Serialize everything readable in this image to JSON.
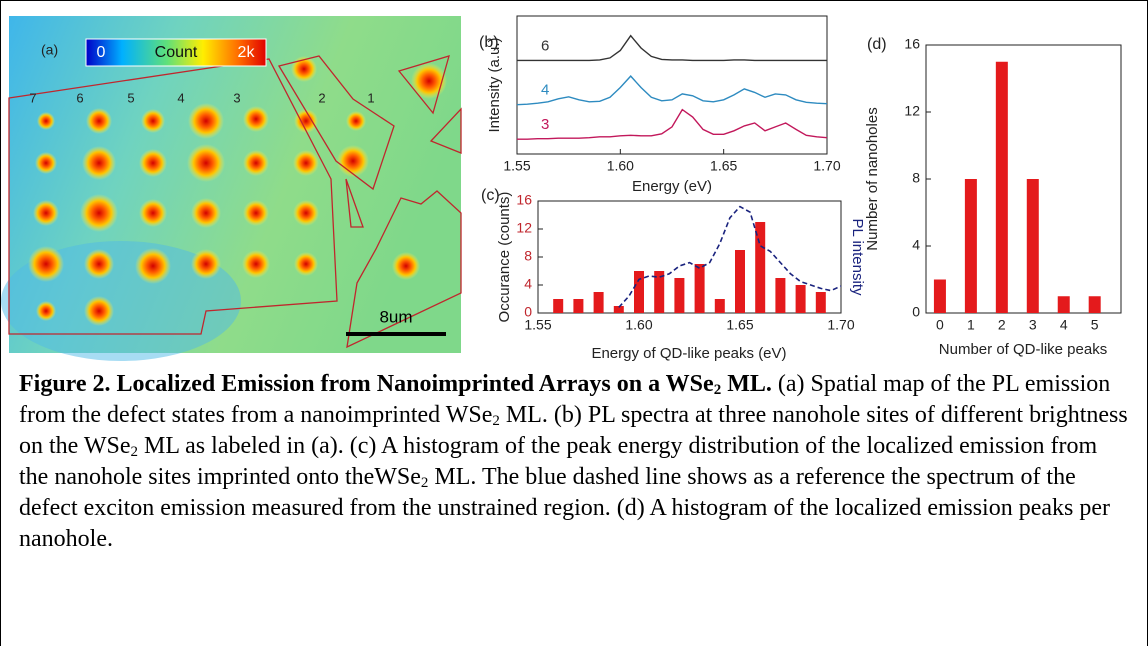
{
  "image_panel": {
    "panel_label": "(a)",
    "colorbar": {
      "min_label": "0",
      "title": "Count",
      "max_label": "2k"
    },
    "site_labels": [
      "7",
      "6",
      "5",
      "4",
      "3",
      "2",
      "1"
    ],
    "scale_bar": "8um"
  },
  "chart_data": [
    {
      "panel_label": "(b)",
      "type": "line",
      "x_label": "Energy (eV)",
      "y_label": "Intensity (a.u.)",
      "x": [
        1.55,
        1.555,
        1.56,
        1.565,
        1.57,
        1.575,
        1.58,
        1.585,
        1.59,
        1.595,
        1.6,
        1.605,
        1.61,
        1.615,
        1.62,
        1.625,
        1.63,
        1.635,
        1.64,
        1.645,
        1.65,
        1.655,
        1.66,
        1.665,
        1.67,
        1.675,
        1.68,
        1.685,
        1.69,
        1.695,
        1.7
      ],
      "xlim": [
        1.55,
        1.7
      ],
      "xticks": [
        1.55,
        {
          "value": 1.6,
          "label": "1.60"
        },
        1.65,
        {
          "value": 1.7,
          "label": "1.70"
        }
      ],
      "ylim": [
        0,
        2.8
      ],
      "series": [
        {
          "name": "6",
          "color": "#333333",
          "values": [
            1.9,
            1.9,
            1.9,
            1.9,
            1.9,
            1.9,
            1.9,
            1.9,
            1.91,
            1.95,
            2.1,
            2.4,
            2.15,
            1.98,
            1.92,
            1.91,
            1.91,
            1.9,
            1.9,
            1.9,
            1.9,
            1.91,
            1.91,
            1.9,
            1.9,
            1.9,
            1.9,
            1.9,
            1.9,
            1.9,
            1.9
          ]
        },
        {
          "name": "4",
          "color": "#2e8bc0",
          "values": [
            1.0,
            1.01,
            1.03,
            1.06,
            1.12,
            1.16,
            1.1,
            1.06,
            1.07,
            1.15,
            1.35,
            1.58,
            1.35,
            1.15,
            1.08,
            1.1,
            1.22,
            1.18,
            1.08,
            1.06,
            1.1,
            1.2,
            1.32,
            1.25,
            1.15,
            1.22,
            1.2,
            1.1,
            1.05,
            1.03,
            1.02
          ]
        },
        {
          "name": "3",
          "color": "#c2185b",
          "values": [
            0.3,
            0.3,
            0.31,
            0.31,
            0.32,
            0.32,
            0.32,
            0.33,
            0.35,
            0.35,
            0.37,
            0.38,
            0.37,
            0.37,
            0.41,
            0.55,
            0.9,
            0.75,
            0.5,
            0.4,
            0.4,
            0.47,
            0.57,
            0.63,
            0.47,
            0.55,
            0.63,
            0.5,
            0.38,
            0.35,
            0.33
          ]
        }
      ]
    },
    {
      "panel_label": "(c)",
      "type": "bar",
      "x_label": "Energy of QD-like peaks (eV)",
      "y_label": "Occurance (counts)",
      "y2_label": "PL intensity",
      "x": [
        1.56,
        1.57,
        1.58,
        1.59,
        1.6,
        1.61,
        1.62,
        1.63,
        1.64,
        1.65,
        1.66,
        1.67,
        1.68,
        1.69
      ],
      "values": [
        2,
        2,
        3,
        1,
        6,
        6,
        5,
        7,
        2,
        9,
        13,
        5,
        4,
        3
      ],
      "color": "#e41a1c",
      "xlim": [
        1.55,
        1.7
      ],
      "xticks": [
        1.55,
        {
          "value": 1.6,
          "label": "1.60"
        },
        1.65,
        {
          "value": 1.7,
          "label": "1.70"
        }
      ],
      "ylim": [
        0,
        16
      ],
      "yticks": [
        0,
        4,
        8,
        12,
        16
      ],
      "y2lim": [
        0,
        1
      ],
      "reference": {
        "x": [
          1.59,
          1.595,
          1.6,
          1.605,
          1.61,
          1.615,
          1.62,
          1.625,
          1.63,
          1.635,
          1.64,
          1.645,
          1.65,
          1.655,
          1.66,
          1.665,
          1.67,
          1.675,
          1.68,
          1.685,
          1.69,
          1.695,
          1.7
        ],
        "values": [
          0.05,
          0.15,
          0.3,
          0.33,
          0.32,
          0.35,
          0.42,
          0.45,
          0.4,
          0.45,
          0.62,
          0.85,
          0.95,
          0.9,
          0.6,
          0.55,
          0.45,
          0.35,
          0.28,
          0.25,
          0.22,
          0.2,
          0.24
        ],
        "color": "#1a237e",
        "dashed": true,
        "axis": "y2"
      }
    },
    {
      "panel_label": "(d)",
      "type": "bar",
      "x_label": "Number of QD-like peaks",
      "y_label": "Number of nanoholes",
      "categories": [
        "0",
        "1",
        "2",
        "3",
        "4",
        "5"
      ],
      "values": [
        2,
        8,
        15,
        8,
        1,
        1
      ],
      "color": "#e41a1c",
      "ylim": [
        0,
        16
      ],
      "yticks": [
        0,
        4,
        8,
        12,
        16
      ]
    }
  ],
  "caption": [
    {
      "text": "Figure 2. Localized Emission from Nanoimprinted Arrays on a WSe",
      "style": "bold"
    },
    {
      "text": "2",
      "style": "bold-sub"
    },
    {
      "text": " ML.",
      "style": "bold"
    },
    {
      "text": " (a) Spatial map of the PL emission from the defect states from a nanoimprinted WSe",
      "style": "normal"
    },
    {
      "text": "2",
      "style": "sub"
    },
    {
      "text": " ML.  (b) PL spectra at three nanohole sites of different brightness on the WSe",
      "style": "normal"
    },
    {
      "text": "2",
      "style": "sub"
    },
    {
      "text": " ML as labeled in (a). (c) A histogram of the peak energy distribution of the localized emission from the nanohole sites imprinted onto theWSe",
      "style": "normal"
    },
    {
      "text": "2",
      "style": "sub"
    },
    {
      "text": " ML. The blue dashed line shows as a reference the spectrum of the defect exciton emission measured from the unstrained region. (d) A histogram of the localized emission peaks per nanohole.",
      "style": "normal"
    }
  ]
}
